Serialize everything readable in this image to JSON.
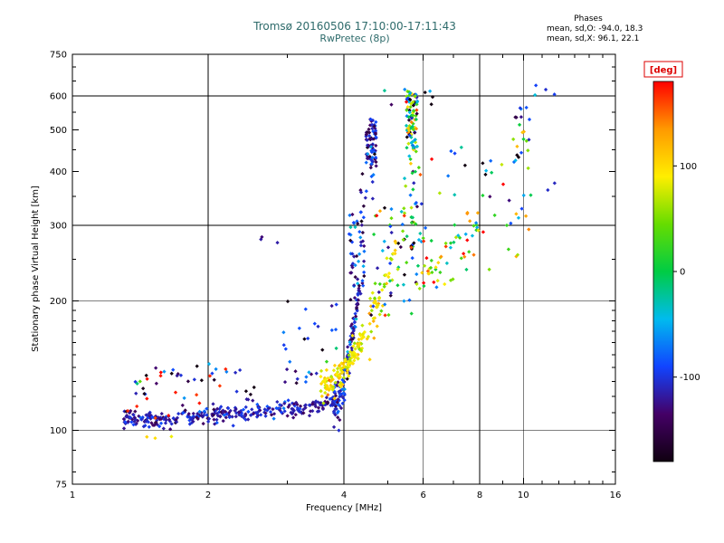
{
  "chart_data": {
    "type": "scatter",
    "title": "Tromsø 20160506 17:10:00-17:11:43",
    "subtitle": "RwPretec (8p)",
    "xlabel": "Frequency [MHz]",
    "ylabel": "Stationary phase Virtual Height [km]",
    "x_scale": "log",
    "y_scale": "log",
    "xlim": [
      1,
      16
    ],
    "ylim": [
      75,
      750
    ],
    "x_ticks_labeled": [
      1,
      2,
      4,
      6,
      8,
      10,
      16
    ],
    "x_ticks_minor": [
      3,
      5,
      7,
      9,
      11,
      12,
      13,
      14,
      15
    ],
    "y_ticks_labeled": [
      75,
      100,
      200,
      300,
      400,
      500,
      600,
      750
    ],
    "y_ticks_minor": [
      80,
      90,
      110,
      120,
      130,
      140,
      150,
      160,
      170,
      180,
      190,
      250,
      350,
      450,
      550,
      650,
      700
    ],
    "x_gridlines": [
      2,
      4,
      6,
      8,
      10
    ],
    "y_gridlines": [
      100,
      200,
      300,
      600
    ],
    "grid": "on",
    "stats": {
      "header": "Phases",
      "o_line": "mean, sd,O: -94.0, 18.3",
      "x_line": "mean, sd,X:  96.1, 22.1"
    },
    "colorbar": {
      "label": "[deg]",
      "min": -180,
      "max": 180,
      "tick_values": [
        100,
        0,
        -100
      ],
      "label_color": "#dd0000",
      "colors_top_to_bottom": [
        "#ff0000",
        "#ff9900",
        "#ffee00",
        "#66dd00",
        "#00cc44",
        "#00bbee",
        "#1144ff",
        "#440066",
        "#100010"
      ]
    },
    "title_color": "#2e6b6b",
    "clusters": [
      {
        "name": "o-trace-baseline",
        "type": "band",
        "f": [
          1.3,
          3.95
        ],
        "h": [
          106,
          117
        ],
        "h_sd": 2.5,
        "curve": 1.6,
        "n": 340,
        "phase_mean": -115,
        "phase_sd": 18
      },
      {
        "name": "o-trace-upper-scatter",
        "type": "blob",
        "f": [
          1.35,
          3.6
        ],
        "h": [
          118,
          144
        ],
        "n": 42,
        "phase_mean": -108,
        "phase_sd": 45
      },
      {
        "name": "dark-red-sprinkle",
        "type": "blob",
        "f": [
          1.3,
          2.3
        ],
        "h": [
          105,
          142
        ],
        "n": 14,
        "phase_mean": 172,
        "phase_sd": 6
      },
      {
        "name": "low-yellow-outliers",
        "type": "blob",
        "f": [
          1.45,
          1.7
        ],
        "h": [
          92,
          100
        ],
        "n": 3,
        "phase_mean": 95,
        "phase_sd": 15
      },
      {
        "name": "o-rise",
        "type": "band",
        "f": [
          3.8,
          4.32
        ],
        "h": [
          116,
          215
        ],
        "h_sd": 8,
        "curve": 2.2,
        "n": 130,
        "phase_mean": -105,
        "phase_sd": 25
      },
      {
        "name": "mid-transition-scatter",
        "type": "blob",
        "f": [
          2.9,
          3.85
        ],
        "h": [
          140,
          200
        ],
        "n": 18,
        "phase_mean": -100,
        "phase_sd": 45
      },
      {
        "name": "o-spread-vertical",
        "type": "blob",
        "f": [
          4.1,
          4.45
        ],
        "h": [
          200,
          325
        ],
        "n": 55,
        "phase_mean": -100,
        "phase_sd": 35
      },
      {
        "name": "o-high-cluster",
        "type": "blob",
        "f": [
          4.48,
          4.72
        ],
        "h": [
          415,
          530
        ],
        "n": 75,
        "phase_mean": -118,
        "phase_sd": 28
      },
      {
        "name": "o-high-lower-outliers",
        "type": "blob",
        "f": [
          4.35,
          4.8
        ],
        "h": [
          330,
          415
        ],
        "n": 12,
        "phase_mean": -110,
        "phase_sd": 40
      },
      {
        "name": "x-trace",
        "type": "band",
        "f": [
          3.55,
          4.45
        ],
        "h": [
          126,
          168
        ],
        "h_sd": 5,
        "curve": 2.0,
        "n": 135,
        "phase_mean": 92,
        "phase_sd": 18
      },
      {
        "name": "x-rise",
        "type": "band",
        "f": [
          4.45,
          5.2
        ],
        "h": [
          170,
          265
        ],
        "h_sd": 12,
        "curve": 1.5,
        "n": 45,
        "phase_mean": 95,
        "phase_sd": 25
      },
      {
        "name": "mid-mixed-scatter",
        "type": "blob",
        "f": [
          4.55,
          6.0
        ],
        "h": [
          185,
          330
        ],
        "n": 70,
        "phase_mean": -15,
        "phase_sd": 110
      },
      {
        "name": "streak-5p6-high",
        "type": "blob",
        "f": [
          5.5,
          5.82
        ],
        "h": [
          445,
          615
        ],
        "n": 95,
        "phase_mean": -10,
        "phase_sd": 120
      },
      {
        "name": "streak-5p6-mid",
        "type": "blob",
        "f": [
          5.45,
          5.95
        ],
        "h": [
          300,
          440
        ],
        "n": 20,
        "phase_mean": 0,
        "phase_sd": 110
      },
      {
        "name": "scatter-6-8",
        "type": "band",
        "f": [
          6.0,
          8.1
        ],
        "h": [
          225,
          305
        ],
        "h_sd": 20,
        "curve": 1,
        "n": 55,
        "phase_mean": 70,
        "phase_sd": 80
      },
      {
        "name": "scatter-6-8-high",
        "type": "blob",
        "f": [
          6.2,
          7.6
        ],
        "h": [
          350,
          460
        ],
        "n": 8,
        "phase_mean": -30,
        "phase_sd": 100
      },
      {
        "name": "scatter-8-10",
        "type": "blob",
        "f": [
          8.0,
          10.4
        ],
        "h": [
          230,
          430
        ],
        "n": 25,
        "phase_mean": 20,
        "phase_sd": 110
      },
      {
        "name": "streak-9p8",
        "type": "blob",
        "f": [
          9.5,
          10.35
        ],
        "h": [
          400,
          585
        ],
        "n": 22,
        "phase_mean": -60,
        "phase_sd": 90
      },
      {
        "name": "top-sparse",
        "type": "blob",
        "f": [
          4.6,
          6.6
        ],
        "h": [
          565,
          625
        ],
        "n": 8,
        "phase_mean": -40,
        "phase_sd": 100
      },
      {
        "name": "far-right-top",
        "type": "blob",
        "f": [
          10.6,
          12.3
        ],
        "h": [
          580,
          640
        ],
        "n": 4,
        "phase_mean": -80,
        "phase_sd": 60
      },
      {
        "name": "right-mid-outliers",
        "type": "blob",
        "f": [
          11.0,
          11.8
        ],
        "h": [
          355,
          385
        ],
        "n": 2,
        "phase_mean": -120,
        "phase_sd": 30
      },
      {
        "name": "left-high-outliers",
        "type": "blob",
        "f": [
          2.5,
          3.2
        ],
        "h": [
          268,
          290
        ],
        "n": 3,
        "phase_mean": -110,
        "phase_sd": 30
      }
    ]
  }
}
